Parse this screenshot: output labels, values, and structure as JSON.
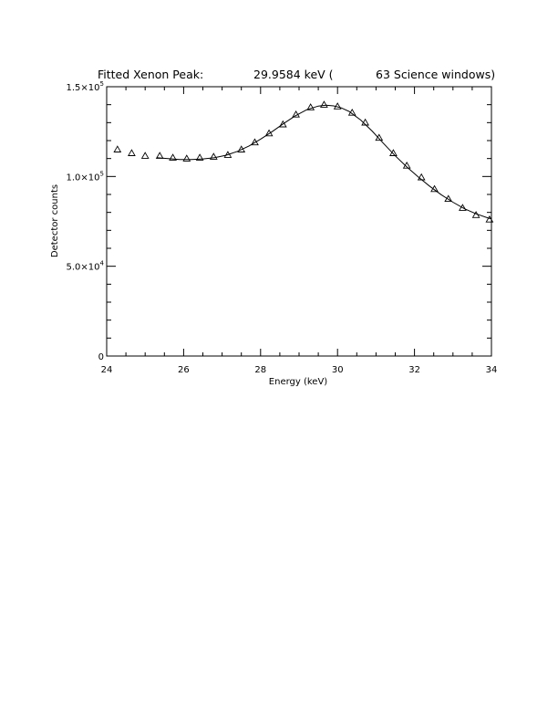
{
  "chart_data": {
    "type": "scatter",
    "title": {
      "prefix": "Fitted Xenon Peak:",
      "energy": "29.9584 keV (",
      "windows": "63 Science windows)"
    },
    "xlabel": "Energy (keV)",
    "ylabel": "Detector counts",
    "xlim": [
      24,
      34
    ],
    "ylim": [
      0,
      150000
    ],
    "x_ticks": [
      {
        "value": 24,
        "label": "24"
      },
      {
        "value": 26,
        "label": "26"
      },
      {
        "value": 28,
        "label": "28"
      },
      {
        "value": 30,
        "label": "30"
      },
      {
        "value": 32,
        "label": "32"
      },
      {
        "value": 34,
        "label": "34"
      }
    ],
    "y_ticks": [
      {
        "value": 0,
        "mantissa": "0",
        "exponent": ""
      },
      {
        "value": 50000,
        "mantissa": "5.0×10",
        "exponent": "4"
      },
      {
        "value": 100000,
        "mantissa": "1.0×10",
        "exponent": "5"
      },
      {
        "value": 150000,
        "mantissa": "1.5×10",
        "exponent": "5"
      }
    ],
    "grid": false,
    "series": [
      {
        "kind": "points",
        "marker": "triangle",
        "x": [
          24.28,
          24.65,
          25.0,
          25.38,
          25.72,
          26.08,
          26.42,
          26.78,
          27.15,
          27.5,
          27.85,
          28.22,
          28.58,
          28.92,
          29.3,
          29.65,
          30.0,
          30.38,
          30.72,
          31.08,
          31.45,
          31.8,
          32.18,
          32.52,
          32.88,
          33.25,
          33.6,
          33.95
        ],
        "y": [
          115000,
          113000,
          111500,
          111500,
          110500,
          110000,
          110500,
          111000,
          112000,
          115000,
          119000,
          124000,
          129000,
          134500,
          138500,
          140000,
          139000,
          135500,
          130000,
          121500,
          113000,
          106000,
          99500,
          93000,
          87500,
          82500,
          78500,
          76000
        ]
      },
      {
        "kind": "line",
        "x": [
          25.3,
          25.6,
          25.9,
          26.2,
          26.5,
          26.8,
          27.1,
          27.4,
          27.7,
          28.0,
          28.3,
          28.6,
          28.9,
          29.2,
          29.5,
          29.7,
          29.9,
          30.1,
          30.3,
          30.6,
          30.9,
          31.2,
          31.5,
          31.8,
          32.1,
          32.4,
          32.7,
          33.0,
          33.3,
          33.6,
          33.9,
          34.0
        ],
        "y": [
          110500,
          110000,
          109500,
          109500,
          109800,
          110500,
          111800,
          114000,
          117000,
          120800,
          125000,
          129500,
          133800,
          137200,
          139200,
          139700,
          139300,
          138200,
          136200,
          131500,
          125300,
          118300,
          111500,
          105300,
          99700,
          94500,
          89800,
          85700,
          82000,
          79200,
          77000,
          76300
        ]
      }
    ]
  }
}
